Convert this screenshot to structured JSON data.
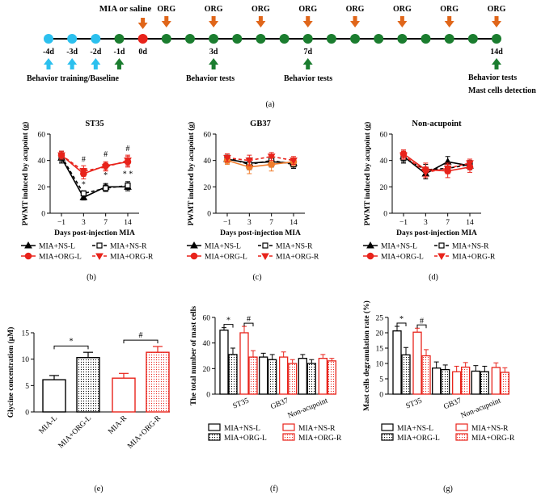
{
  "colors": {
    "black": "#000000",
    "red": "#e8231b",
    "orange": "#f07d2d",
    "dark_orange": "#e0661a",
    "green": "#1b7d2f",
    "light_blue": "#2cc0ee"
  },
  "timeline": {
    "top_label": "MIA or saline",
    "days": [
      "-4d",
      "-3d",
      "-2d",
      "-1d",
      "0d",
      "3d",
      "7d",
      "14d"
    ],
    "org_label": "ORG",
    "org_count": 8,
    "baseline_label": "Behavior training/Baseline",
    "behavior_label": "Behavior tests",
    "end_label_1": "Behavior tests",
    "end_label_2": "Mast cells detection",
    "panel_label": "(a)"
  },
  "chart_data": [
    {
      "type": "line",
      "panel": "(b)",
      "title": "ST35",
      "ylabel": "PWMT induced by acupoint (g)",
      "xlabel": "Days post-injection MIA",
      "categories": [
        "−1",
        "3",
        "7",
        "14"
      ],
      "ylim": [
        0,
        60
      ],
      "yticks": [
        "0",
        "20",
        "40",
        "60"
      ],
      "series": [
        {
          "name": "MIA+NS-L",
          "values": [
            42,
            12,
            20,
            20
          ],
          "err": [
            4,
            2,
            2.5,
            3
          ]
        },
        {
          "name": "MIA+NS-R",
          "values": [
            43,
            15,
            19,
            21
          ],
          "err": [
            4,
            2,
            2.5,
            3
          ]
        },
        {
          "name": "MIA+ORG-L",
          "values": [
            44,
            30,
            36,
            39
          ],
          "err": [
            3,
            4,
            3,
            4
          ]
        },
        {
          "name": "MIA+ORG-R",
          "values": [
            44,
            32,
            35,
            40
          ],
          "err": [
            3,
            4,
            3,
            4
          ]
        }
      ],
      "annotations": [
        {
          "text": "#",
          "cat": 1,
          "y": 39
        },
        {
          "text": "*",
          "cat": 1,
          "y": 20
        },
        {
          "text": "#",
          "cat": 2,
          "y": 43
        },
        {
          "text": "*",
          "cat": 2,
          "y": 27
        },
        {
          "text": "#",
          "cat": 3,
          "y": 47
        },
        {
          "text": "* *",
          "cat": 3,
          "y": 28
        }
      ],
      "legend": [
        "MIA+NS-L",
        "MIA+NS-R",
        "MIA+ORG-L",
        "MIA+ORG-R"
      ]
    },
    {
      "type": "line",
      "panel": "(c)",
      "title": "GB37",
      "ylabel": "PWMT induced by acupoint (g)",
      "xlabel": "Days post-injection MIA",
      "categories": [
        "−1",
        "3",
        "7",
        "14"
      ],
      "ylim": [
        0,
        60
      ],
      "yticks": [
        "0",
        "20",
        "40",
        "60"
      ],
      "series": [
        {
          "name": "MIA+NS-L",
          "values": [
            41,
            38,
            39,
            38
          ],
          "err": [
            3,
            4,
            4,
            3
          ]
        },
        {
          "name": "MIA+NS-R",
          "values": [
            42,
            37,
            40,
            37
          ],
          "err": [
            3,
            4,
            4,
            3
          ]
        },
        {
          "name": "MIA+ORG-L",
          "values": [
            40,
            35,
            37,
            39
          ],
          "err": [
            3,
            5,
            5,
            3
          ]
        },
        {
          "name": "MIA+ORG-R",
          "values": [
            42,
            40,
            43,
            40
          ],
          "err": [
            3,
            4,
            3,
            3
          ]
        }
      ],
      "annotations": [],
      "legend": [
        "MIA+NS-L",
        "MIA+NS-R",
        "MIA+ORG-L",
        "MIA+ORG-R"
      ]
    },
    {
      "type": "line",
      "panel": "(d)",
      "title": "Non-acupoint",
      "ylabel": "PWMT induced by acupoint (g)",
      "xlabel": "Days post-injection MIA",
      "categories": [
        "−1",
        "3",
        "7",
        "14"
      ],
      "ylim": [
        0,
        60
      ],
      "yticks": [
        "0",
        "20",
        "40",
        "60"
      ],
      "series": [
        {
          "name": "MIA+NS-L",
          "values": [
            43,
            30,
            39,
            36
          ],
          "err": [
            4,
            4,
            4,
            3
          ]
        },
        {
          "name": "MIA+NS-R",
          "values": [
            42,
            33,
            34,
            37
          ],
          "err": [
            4,
            4,
            4,
            3
          ]
        },
        {
          "name": "MIA+ORG-L",
          "values": [
            45,
            33,
            32,
            35
          ],
          "err": [
            3,
            5,
            5,
            4
          ]
        },
        {
          "name": "MIA+ORG-R",
          "values": [
            44,
            31,
            34,
            38
          ],
          "err": [
            3,
            4,
            4,
            3
          ]
        }
      ],
      "annotations": [],
      "legend": [
        "MIA+NS-L",
        "MIA+NS-R",
        "MIA+ORG-L",
        "MIA+ORG-R"
      ]
    },
    {
      "type": "bar",
      "panel": "(e)",
      "ylabel": "Glycine concentration (μM)",
      "categories": [
        "MIA-L",
        "MIA+ORG-L",
        "MIA-R",
        "MIA+ORG-R"
      ],
      "values": [
        6.1,
        10.3,
        6.4,
        11.3
      ],
      "err": [
        0.8,
        1.0,
        0.9,
        1.1
      ],
      "styles": [
        "open-black",
        "dotted-black",
        "open-red",
        "dotted-red"
      ],
      "ylim": [
        0,
        15
      ],
      "yticks": [
        "0",
        "5",
        "10",
        "15"
      ],
      "annotations": [
        {
          "text": "*",
          "from": 0,
          "to": 1
        },
        {
          "text": "#",
          "from": 2,
          "to": 3
        }
      ]
    },
    {
      "type": "bar",
      "panel": "(f)",
      "ylabel": "The total number of mast cells",
      "categories": [
        "ST35",
        "GB37",
        "Non-acupoint"
      ],
      "ylim": [
        0,
        60
      ],
      "yticks": [
        "0",
        "20",
        "40",
        "60"
      ],
      "series": [
        {
          "name": "MIA+NS-L",
          "style": "open-black",
          "values": [
            50,
            29,
            28
          ],
          "err": [
            2,
            3,
            3
          ]
        },
        {
          "name": "MIA+ORG-L",
          "style": "dotted-black",
          "values": [
            31,
            27,
            24
          ],
          "err": [
            5,
            4,
            3
          ]
        },
        {
          "name": "MIA+NS-R",
          "style": "open-red",
          "values": [
            48,
            29,
            28
          ],
          "err": [
            5,
            4,
            3
          ]
        },
        {
          "name": "MIA+ORG-R",
          "style": "dotted-red",
          "values": [
            29,
            24,
            26
          ],
          "err": [
            5,
            3,
            2
          ]
        }
      ],
      "annotations": [
        {
          "text": "*",
          "group": 0,
          "from": 0,
          "to": 1
        },
        {
          "text": "#",
          "group": 0,
          "from": 2,
          "to": 3
        }
      ],
      "legend": [
        "MIA+NS-L",
        "MIA+ORG-L",
        "MIA+NS-R",
        "MIA+ORG-R"
      ]
    },
    {
      "type": "bar",
      "panel": "(g)",
      "ylabel": "Mast cells degranulation rate (%)",
      "categories": [
        "ST35",
        "GB37",
        "Non-acupoint"
      ],
      "ylim": [
        0,
        25
      ],
      "yticks": [
        "0",
        "5",
        "10",
        "15",
        "20",
        "25"
      ],
      "series": [
        {
          "name": "MIA+NS-L",
          "style": "open-black",
          "values": [
            20.6,
            8.5,
            7.5
          ],
          "err": [
            1.5,
            2,
            1.8
          ]
        },
        {
          "name": "MIA+ORG-L",
          "style": "dotted-black",
          "values": [
            12.8,
            8.0,
            7.3
          ],
          "err": [
            2.4,
            1.5,
            1.8
          ]
        },
        {
          "name": "MIA+NS-R",
          "style": "open-red",
          "values": [
            20.2,
            7.3,
            8.7
          ],
          "err": [
            1.3,
            1.8,
            1.5
          ]
        },
        {
          "name": "MIA+ORG-R",
          "style": "dotted-red",
          "values": [
            12.5,
            8.8,
            7.1
          ],
          "err": [
            2.0,
            1.5,
            1.5
          ]
        }
      ],
      "annotations": [
        {
          "text": "*",
          "group": 0,
          "from": 0,
          "to": 1
        },
        {
          "text": "#",
          "group": 0,
          "from": 2,
          "to": 3
        }
      ],
      "legend": [
        "MIA+NS-L",
        "MIA+ORG-L",
        "MIA+NS-R",
        "MIA+ORG-R"
      ]
    }
  ]
}
